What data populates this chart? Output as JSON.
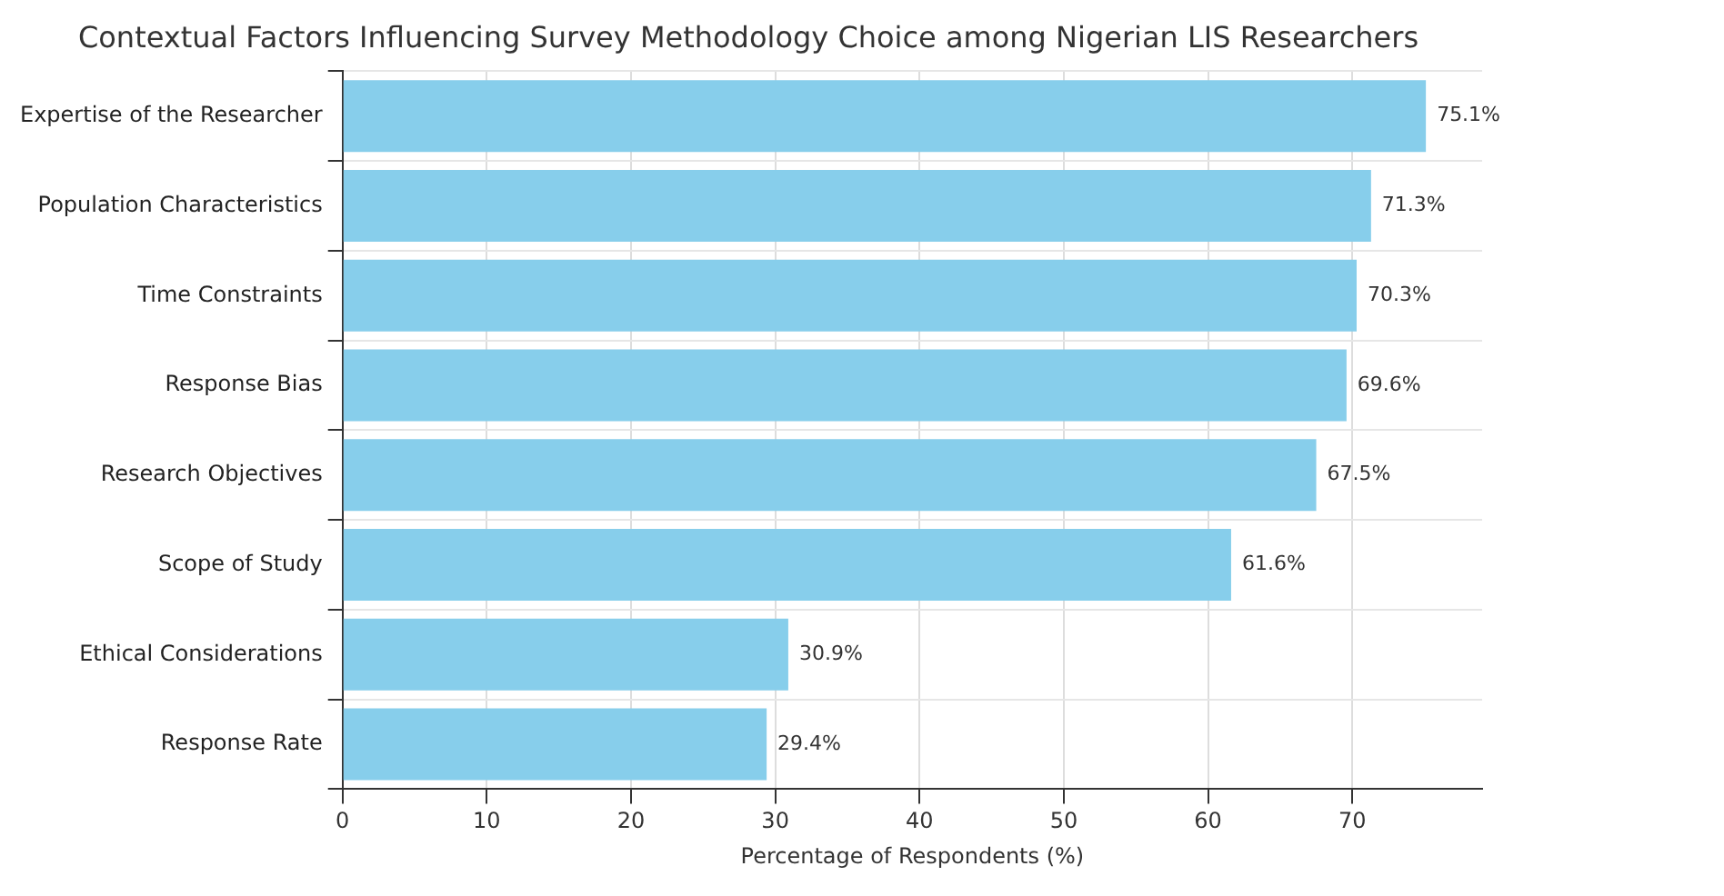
{
  "chart_data": {
    "type": "bar",
    "orientation": "horizontal",
    "title": "Contextual Factors Influencing Survey Methodology Choice among Nigerian LIS Researchers",
    "xlabel": "Percentage of Respondents (%)",
    "categories": [
      "Expertise of the Researcher",
      "Population Characteristics",
      "Time Constraints",
      "Response Bias",
      "Research Objectives",
      "Scope of Study",
      "Ethical Considerations",
      "Response Rate"
    ],
    "values": [
      75.1,
      71.3,
      70.3,
      69.6,
      67.5,
      61.6,
      30.9,
      29.4
    ],
    "value_labels": [
      "75.1%",
      "71.3%",
      "70.3%",
      "69.6%",
      "67.5%",
      "61.6%",
      "30.9%",
      "29.4%"
    ],
    "color": "#87ceeb",
    "xlim": [
      0,
      79
    ],
    "xticks": [
      0,
      10,
      20,
      30,
      40,
      50,
      60,
      70
    ],
    "grid": true,
    "legend": false
  }
}
